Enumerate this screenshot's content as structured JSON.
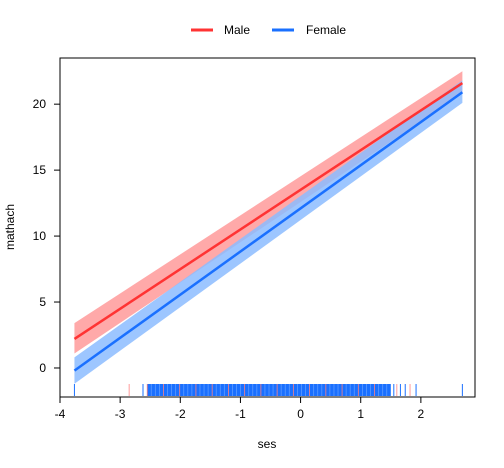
{
  "chart_data": {
    "type": "line",
    "title": "",
    "xlabel": "ses",
    "ylabel": "mathach",
    "xlim": [
      -4.0,
      2.9
    ],
    "ylim": [
      -2.2,
      23.5
    ],
    "xticks": [
      -4,
      -3,
      -2,
      -1,
      0,
      1,
      2
    ],
    "yticks": [
      0,
      5,
      10,
      15,
      20
    ],
    "legend_position": "top-center",
    "grid": false,
    "series": [
      {
        "name": "Male",
        "color": "#ff3333",
        "band_color": "#ff9a9a",
        "x": [
          -3.76,
          2.69
        ],
        "y": [
          2.2,
          21.6
        ],
        "lower": [
          1.1,
          20.8
        ],
        "upper": [
          3.4,
          22.5
        ]
      },
      {
        "name": "Female",
        "color": "#1a70ff",
        "band_color": "#8cbcff",
        "x": [
          -3.76,
          2.69
        ],
        "y": [
          -0.2,
          20.9
        ],
        "lower": [
          -1.2,
          20.1
        ],
        "upper": [
          0.8,
          21.8
        ]
      }
    ],
    "rug": {
      "x_range": [
        -3.76,
        2.69
      ],
      "dense_range": [
        -2.55,
        1.5
      ],
      "sparse_points": [
        -3.76,
        -2.85,
        -2.62,
        1.55,
        1.6,
        1.66,
        1.74,
        1.82,
        1.92,
        2.69
      ]
    }
  }
}
